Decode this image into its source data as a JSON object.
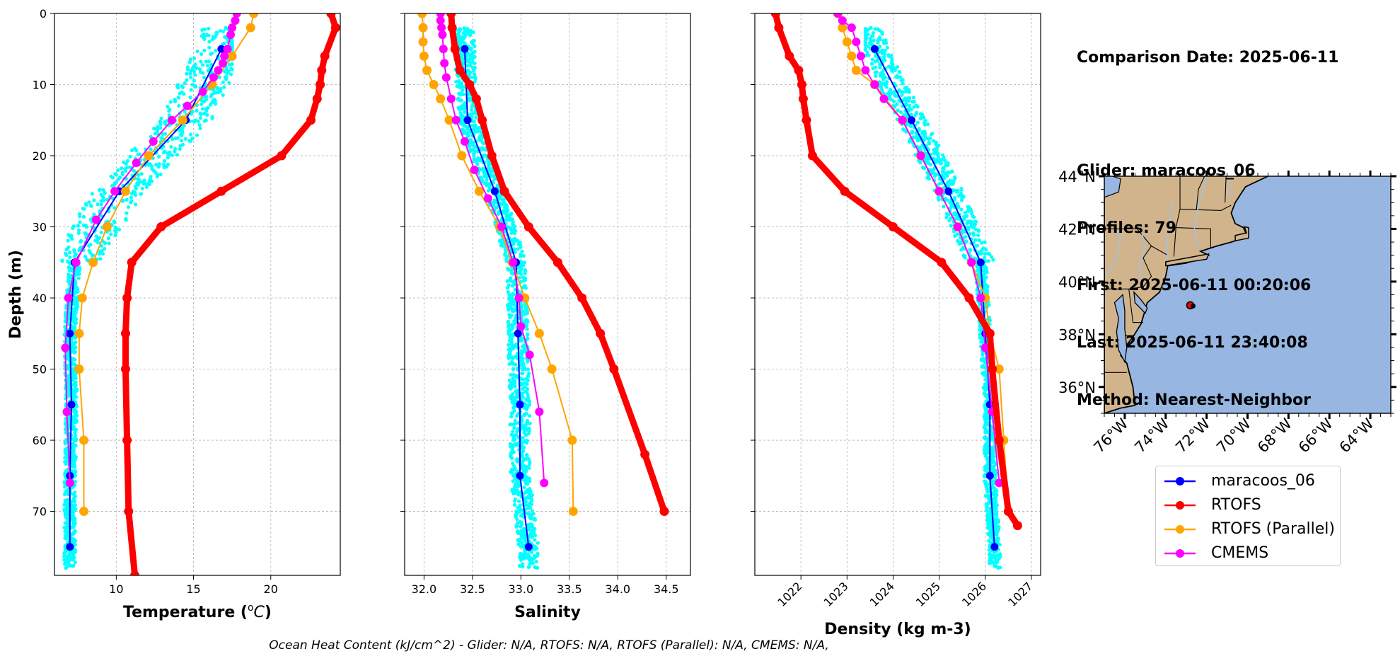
{
  "info": {
    "date_line": "Comparison Date: 2025-06-11",
    "glider_line": "Glider: maracoos_06",
    "profiles_line": "Profiles: 79",
    "first_line": "First: 2025-06-11 00:20:06",
    "last_line": "Last: 2025-06-11 23:40:08",
    "method_line": "Method: Nearest-Neighbor"
  },
  "footer": "Ocean Heat Content (kJ/cm^2) - Glider: N/A,  RTOFS: N/A,  RTOFS (Parallel): N/A,  CMEMS: N/A,",
  "colors": {
    "glider": "#0000ff",
    "rtofs": "#ff0000",
    "rtofs_parallel": "#ffa500",
    "cmems": "#ff00ff",
    "scatter": "#00ffff",
    "land": "#d2b48c",
    "ocean": "#97b6e1"
  },
  "legend": [
    {
      "label": "maracoos_06",
      "color": "#0000ff",
      "key": "glider"
    },
    {
      "label": "RTOFS",
      "color": "#ff0000",
      "key": "rtofs"
    },
    {
      "label": "RTOFS (Parallel)",
      "color": "#ffa500",
      "key": "rtofs_parallel"
    },
    {
      "label": "CMEMS",
      "color": "#ff00ff",
      "key": "cmems"
    }
  ],
  "chart_data": [
    {
      "type": "line",
      "xlabel": "Temperature (°C)",
      "ylabel": "Depth (m)",
      "xlim": [
        6,
        24.5
      ],
      "ylim": [
        79,
        0
      ],
      "xticks": [
        10,
        15,
        20
      ],
      "yticks": [
        0,
        10,
        20,
        30,
        40,
        50,
        60,
        70
      ],
      "grid": true,
      "scatter": {
        "name": "glider observations",
        "depth_range": [
          2,
          78
        ],
        "x_range": [
          6.5,
          17.5
        ]
      },
      "series": [
        {
          "name": "maracoos_06",
          "key": "glider",
          "x": [
            16.8,
            14.5,
            10.2,
            7.3,
            7.0,
            7.1,
            7.0,
            7.0
          ],
          "depth": [
            5,
            15,
            25,
            35,
            45,
            55,
            65,
            75
          ]
        },
        {
          "name": "RTOFS",
          "key": "rtofs",
          "x": [
            23.9,
            24.2,
            23.5,
            23.3,
            23.2,
            23.0,
            22.6,
            20.7,
            16.8,
            12.9,
            11.0,
            10.7,
            10.6,
            10.6,
            10.7,
            10.8,
            11.2
          ],
          "depth": [
            0,
            2,
            6,
            8,
            10,
            12,
            15,
            20,
            25,
            30,
            35,
            40,
            45,
            50,
            60,
            70,
            79
          ]
        },
        {
          "name": "RTOFS (Parallel)",
          "key": "rtofs_parallel",
          "x": [
            18.9,
            18.7,
            17.5,
            16.2,
            14.3,
            12.1,
            10.6,
            9.4,
            8.5,
            7.8,
            7.6,
            7.6,
            7.9,
            7.9
          ],
          "depth": [
            0,
            2,
            6,
            10,
            15,
            20,
            25,
            30,
            35,
            40,
            45,
            50,
            60,
            70
          ]
        },
        {
          "name": "CMEMS",
          "key": "cmems",
          "x": [
            17.8,
            17.7,
            17.5,
            17.4,
            17.2,
            17.0,
            16.9,
            16.6,
            16.3,
            15.6,
            14.6,
            13.6,
            12.4,
            11.3,
            9.9,
            8.7,
            7.4,
            6.9,
            6.7,
            6.8,
            7.0
          ],
          "depth": [
            0,
            1,
            2,
            3,
            5,
            6,
            7,
            8,
            9,
            11,
            13,
            15,
            18,
            21,
            25,
            29,
            35,
            40,
            47,
            56,
            66
          ]
        }
      ]
    },
    {
      "type": "line",
      "xlabel": "Salinity",
      "ylabel": "",
      "xlim": [
        31.8,
        34.75
      ],
      "ylim": [
        79,
        0
      ],
      "xticks": [
        32.0,
        32.5,
        33.0,
        33.5,
        34.0,
        34.5
      ],
      "grid": true,
      "scatter": {
        "name": "glider observations",
        "depth_range": [
          2,
          78
        ],
        "x_range": [
          32.25,
          33.45
        ]
      },
      "series": [
        {
          "name": "maracoos_06",
          "key": "glider",
          "x": [
            32.42,
            32.45,
            32.73,
            32.95,
            32.97,
            32.99,
            32.99,
            33.08
          ],
          "depth": [
            5,
            15,
            25,
            35,
            45,
            55,
            65,
            75
          ]
        },
        {
          "name": "RTOFS",
          "key": "rtofs",
          "x": [
            32.28,
            32.29,
            32.32,
            32.37,
            32.47,
            32.54,
            32.6,
            32.7,
            32.83,
            33.08,
            33.38,
            33.63,
            33.82,
            33.96,
            34.28,
            34.48
          ],
          "depth": [
            0,
            2,
            5,
            8,
            10,
            12,
            15,
            20,
            25,
            30,
            35,
            40,
            45,
            50,
            62,
            70
          ]
        },
        {
          "name": "RTOFS (Parallel)",
          "key": "rtofs_parallel",
          "x": [
            31.98,
            31.99,
            31.99,
            32.0,
            32.03,
            32.1,
            32.17,
            32.26,
            32.39,
            32.57,
            32.78,
            32.91,
            33.04,
            33.19,
            33.32,
            33.53,
            33.54
          ],
          "depth": [
            0,
            2,
            4,
            6,
            8,
            10,
            12,
            15,
            20,
            25,
            30,
            35,
            40,
            45,
            50,
            60,
            70
          ]
        },
        {
          "name": "CMEMS",
          "key": "cmems",
          "x": [
            32.17,
            32.17,
            32.18,
            32.19,
            32.2,
            32.21,
            32.23,
            32.28,
            32.33,
            32.42,
            32.52,
            32.66,
            32.8,
            32.92,
            32.98,
            33.0,
            33.09,
            33.19,
            33.24
          ],
          "depth": [
            0,
            1,
            2,
            3,
            5,
            7,
            9,
            12,
            15,
            18,
            22,
            26,
            30,
            35,
            40,
            44,
            48,
            56,
            66
          ]
        }
      ]
    },
    {
      "type": "line",
      "xlabel": "Density (kg m-3)",
      "ylabel": "",
      "xlim": [
        1021,
        1027.2
      ],
      "ylim": [
        79,
        0
      ],
      "xticks": [
        1022,
        1023,
        1024,
        1025,
        1026,
        1027
      ],
      "grid": true,
      "scatter": {
        "name": "glider observations",
        "depth_range": [
          2,
          78
        ],
        "x_range": [
          1023.4,
          1026.45
        ]
      },
      "series": [
        {
          "name": "maracoos_06",
          "key": "glider",
          "x": [
            1023.6,
            1024.4,
            1025.2,
            1025.9,
            1026.0,
            1026.1,
            1026.1,
            1026.2
          ],
          "depth": [
            5,
            15,
            25,
            35,
            45,
            55,
            65,
            75
          ]
        },
        {
          "name": "RTOFS",
          "key": "rtofs",
          "x": [
            1021.45,
            1021.52,
            1021.75,
            1021.95,
            1022.02,
            1022.05,
            1022.12,
            1022.25,
            1022.95,
            1024.0,
            1025.05,
            1025.65,
            1026.1,
            1026.15,
            1026.3,
            1026.5,
            1026.7
          ],
          "depth": [
            0,
            2,
            6,
            8,
            10,
            12,
            15,
            20,
            25,
            30,
            35,
            40,
            45,
            50,
            60,
            70,
            72
          ]
        },
        {
          "name": "RTOFS (Parallel)",
          "key": "rtofs_parallel",
          "x": [
            1022.8,
            1022.9,
            1023.0,
            1023.1,
            1023.2,
            1023.6,
            1024.2,
            1024.6,
            1025.0,
            1025.4,
            1025.7,
            1026.0,
            1026.1,
            1026.3,
            1026.4,
            1026.5
          ],
          "depth": [
            0,
            2,
            4,
            6,
            8,
            10,
            15,
            20,
            25,
            30,
            35,
            40,
            45,
            50,
            60,
            70
          ]
        },
        {
          "name": "CMEMS",
          "key": "cmems",
          "x": [
            1022.8,
            1022.9,
            1023.1,
            1023.2,
            1023.3,
            1023.4,
            1023.6,
            1023.8,
            1024.2,
            1024.6,
            1025.0,
            1025.4,
            1025.7,
            1025.9,
            1026.0,
            1026.15,
            1026.3
          ],
          "depth": [
            0,
            1,
            2,
            4,
            6,
            8,
            10,
            12,
            15,
            20,
            25,
            30,
            35,
            40,
            47,
            56,
            66
          ]
        }
      ]
    }
  ],
  "map": {
    "lat_ticks": [
      "44°N",
      "42°N",
      "40°N",
      "38°N",
      "36°N"
    ],
    "lat_values": [
      44,
      42,
      40,
      38,
      36
    ],
    "lon_ticks": [
      "76°W",
      "74°W",
      "72°W",
      "70°W",
      "68°W",
      "66°W",
      "64°W"
    ],
    "lon_values": [
      -76,
      -74,
      -72,
      -70,
      -68,
      -66,
      -64
    ],
    "extent": {
      "lon_min": -77,
      "lon_max": -63,
      "lat_min": 35,
      "lat_max": 44
    },
    "glider_position": {
      "lon": -72.8,
      "lat": 39.1
    }
  }
}
